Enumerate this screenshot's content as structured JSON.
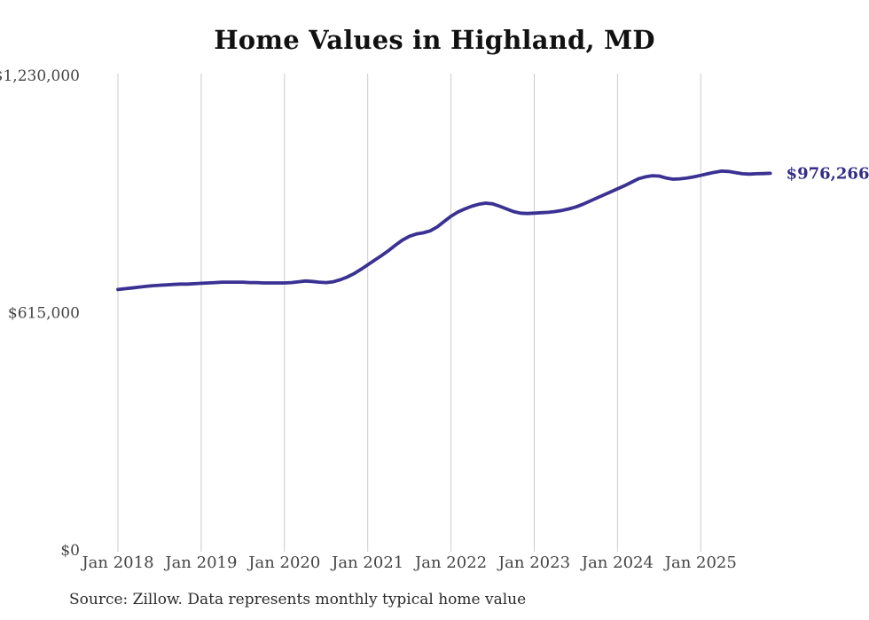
{
  "title": "Home Values in Highland, MD",
  "source_note": "Source: Zillow. Data represents monthly typical home value",
  "colors": {
    "line": "#3a3193",
    "end_label": "#332d86",
    "grid": "#cccccc",
    "title": "#111111",
    "axis_text": "#454545",
    "source_text": "#2b2b2b",
    "background": "#ffffff"
  },
  "chart_data": {
    "type": "line",
    "title": "Home Values in Highland, MD",
    "xlabel": "",
    "ylabel": "",
    "grid": "vertical-only",
    "legend": "none",
    "ylim": [
      0,
      1230000
    ],
    "x_tick_labels": [
      "Jan 2018",
      "Jan 2019",
      "Jan 2020",
      "Jan 2021",
      "Jan 2022",
      "Jan 2023",
      "Jan 2024",
      "Jan 2025"
    ],
    "y_ticks": [
      {
        "label": "$1,230,000",
        "value": 1230000
      },
      {
        "label": "$615,000",
        "value": 615000
      },
      {
        "label": "$0",
        "value": 0
      }
    ],
    "series": [
      {
        "name": "Typical home value",
        "start_month": "2018-01",
        "frequency": "monthly",
        "end_value_label": "$976,266",
        "values": [
          675000,
          677000,
          679000,
          681000,
          683000,
          685000,
          686000,
          687000,
          688000,
          689000,
          689000,
          690000,
          691000,
          692000,
          693000,
          694000,
          694000,
          694000,
          694000,
          693000,
          693000,
          692000,
          692000,
          692000,
          692000,
          693000,
          695000,
          697000,
          696000,
          694000,
          693000,
          695000,
          700000,
          707000,
          716000,
          727000,
          739000,
          751000,
          763000,
          776000,
          790000,
          803000,
          813000,
          819000,
          822000,
          827000,
          837000,
          851000,
          865000,
          876000,
          884000,
          891000,
          896000,
          899000,
          897000,
          891000,
          884000,
          877000,
          873000,
          872000,
          873000,
          874000,
          875000,
          877000,
          880000,
          884000,
          889000,
          896000,
          904000,
          912000,
          920000,
          928000,
          936000,
          944000,
          953000,
          962000,
          967000,
          970000,
          969000,
          964000,
          961000,
          962000,
          964000,
          967000,
          971000,
          975000,
          979000,
          982000,
          981000,
          978000,
          975000,
          974000,
          975000,
          975500,
          976266
        ]
      }
    ]
  }
}
